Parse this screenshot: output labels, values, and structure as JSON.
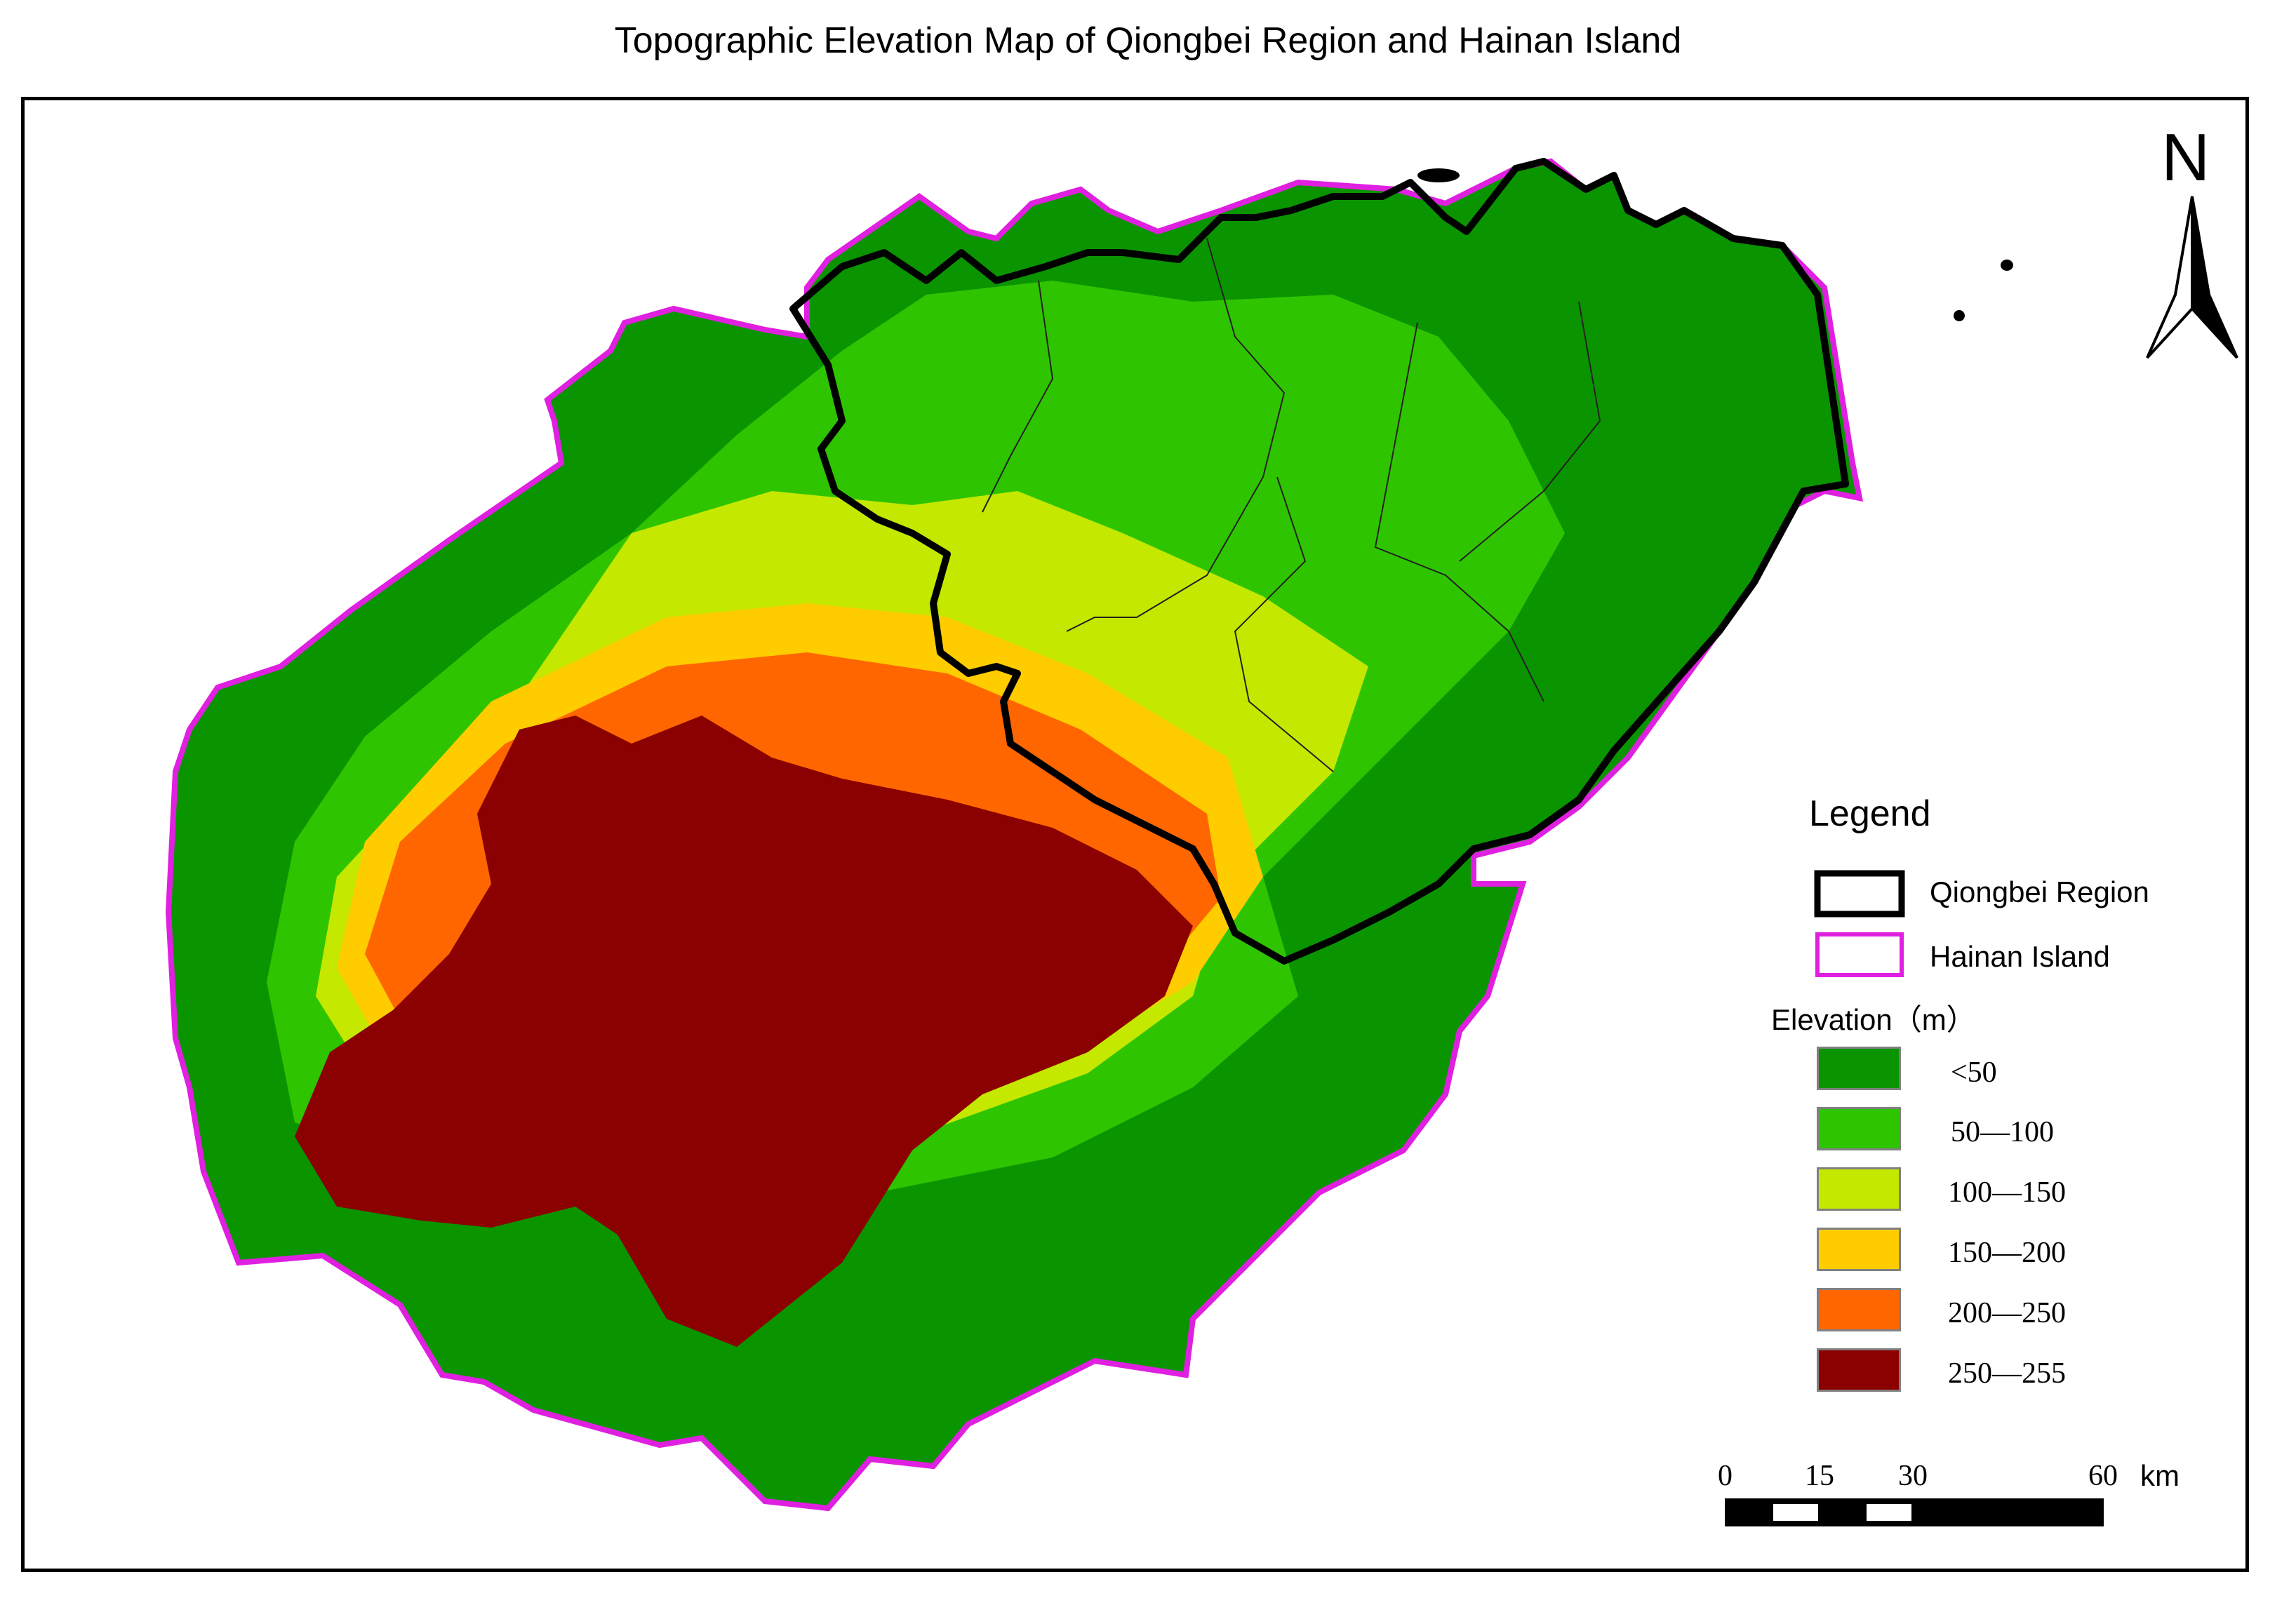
{
  "title": "Topographic Elevation Map of Qiongbei Region and Hainan Island",
  "north_label": "N",
  "legend": {
    "title": "Legend",
    "boundaries": [
      {
        "label": "Qiongbei Region",
        "color": "#000000"
      },
      {
        "label": "Hainan Island",
        "color": "#e020e0"
      }
    ],
    "elevation_title": "Elevation（m）",
    "classes": [
      {
        "label": "<50",
        "color": "#0a9400"
      },
      {
        "label": "50—100",
        "color": "#2fc400"
      },
      {
        "label": "100—150",
        "color": "#c4e800"
      },
      {
        "label": "150—200",
        "color": "#ffcc00"
      },
      {
        "label": "200—250",
        "color": "#ff6600"
      },
      {
        "label": "250—255",
        "color": "#8b0000"
      }
    ]
  },
  "scale_bar": {
    "ticks": [
      "0",
      "15",
      "30",
      "60"
    ],
    "unit": "km"
  }
}
